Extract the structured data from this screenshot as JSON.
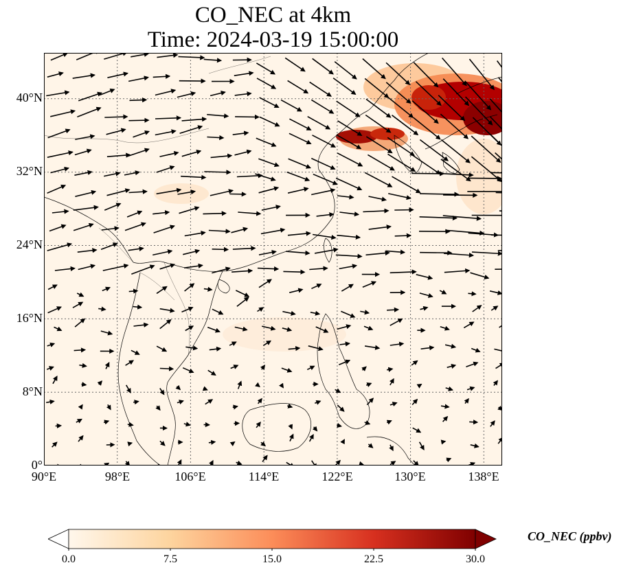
{
  "title": {
    "line1": "CO_NEC at 4km",
    "line2": "Time: 2024-03-19 15:00:00"
  },
  "map": {
    "variable": "CO_NEC",
    "level": "4km",
    "lon_range": [
      90,
      140
    ],
    "lat_range": [
      0,
      45
    ],
    "lon_ticks": [
      "90°E",
      "98°E",
      "106°E",
      "114°E",
      "122°E",
      "130°E",
      "138°E"
    ],
    "lat_ticks": [
      "0°",
      "8°N",
      "16°N",
      "24°N",
      "32°N",
      "40°N"
    ],
    "gridlines": true,
    "wind_vectors": true,
    "high_concentration_region": "Northeast China / Korea / Sea of Japan",
    "colormap": "OrRd"
  },
  "colorbar": {
    "label": "CO_NEC (ppbv)",
    "min": 0.0,
    "max": 30.0,
    "ticks": [
      "0.0",
      "7.5",
      "15.0",
      "22.5",
      "30.0"
    ],
    "extend": "both",
    "colors": [
      "#fff7ec",
      "#fdd49e",
      "#fc8d59",
      "#d7301f",
      "#7f0000"
    ]
  }
}
